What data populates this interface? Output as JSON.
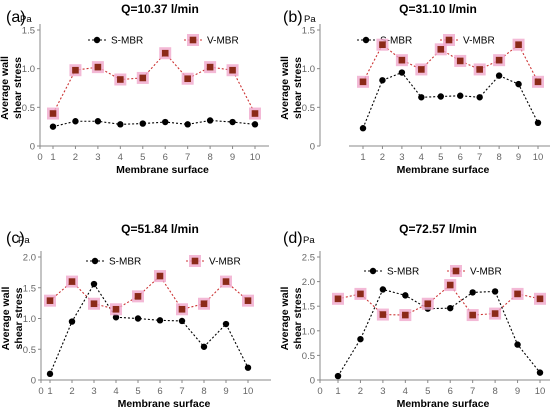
{
  "figure": {
    "colors": {
      "s_mbr": "#000000",
      "v_mbr_line": "#cc3333",
      "v_mbr_marker": "#8b2a18",
      "v_mbr_halo": "#f0a8cc",
      "axis": "#888888",
      "tick_text": "#666666"
    }
  },
  "chart_data": [
    {
      "type": "line",
      "panel_label": "(a)",
      "title": "Q=10.37 l/min",
      "unit": "Pa",
      "xlabel": "Membrane surface",
      "ylabel": [
        "Average wall",
        "shear stress"
      ],
      "x": [
        1,
        2,
        3,
        4,
        5,
        6,
        7,
        8,
        9,
        10
      ],
      "xlim": [
        0,
        10
      ],
      "xticks": [
        "0",
        "1",
        "2",
        "3",
        "4",
        "5",
        "6",
        "7",
        "8",
        "9",
        "10"
      ],
      "ylim": [
        0,
        1.5
      ],
      "yticks": [
        "0",
        "0.5",
        "1.0",
        "1.5"
      ],
      "legend_position": "top",
      "grid": false,
      "series": [
        {
          "name": "S-MBR",
          "marker": "circle",
          "values": [
            0.25,
            0.32,
            0.32,
            0.28,
            0.29,
            0.31,
            0.28,
            0.33,
            0.31,
            0.28
          ]
        },
        {
          "name": "V-MBR",
          "marker": "square",
          "values": [
            0.42,
            0.98,
            1.02,
            0.86,
            0.88,
            1.2,
            0.87,
            1.02,
            0.98,
            0.42
          ]
        }
      ]
    },
    {
      "type": "line",
      "panel_label": "(b)",
      "title": "Q=31.10 l/min",
      "unit": "Pa",
      "xlabel": "Membrane surface",
      "ylabel": [
        "Average wall",
        "shear stress"
      ],
      "x": [
        1,
        2,
        3,
        4,
        5,
        6,
        7,
        8,
        9,
        10
      ],
      "xlim": [
        0,
        10
      ],
      "xticks": [
        "1",
        "2",
        "3",
        "4",
        "5",
        "6",
        "7",
        "8",
        "9",
        "10"
      ],
      "ylim": [
        0,
        1.5
      ],
      "yticks": [
        "0",
        "0.5",
        "1.0",
        "1.5"
      ],
      "legend_position": "top",
      "grid": false,
      "series": [
        {
          "name": "S-MBR",
          "marker": "circle",
          "values": [
            0.23,
            0.85,
            0.95,
            0.63,
            0.64,
            0.65,
            0.63,
            0.91,
            0.8,
            0.3
          ]
        },
        {
          "name": "V-MBR",
          "marker": "square",
          "values": [
            0.83,
            1.31,
            1.11,
            0.99,
            1.25,
            1.1,
            0.99,
            1.11,
            1.31,
            0.83
          ]
        }
      ]
    },
    {
      "type": "line",
      "panel_label": "(c)",
      "title": "Q=51.84 l/min",
      "unit": "Pa",
      "xlabel": "Membrane surface",
      "ylabel": [
        "Average wall",
        "shear stress"
      ],
      "x": [
        1,
        2,
        3,
        4,
        5,
        6,
        7,
        8,
        9,
        10
      ],
      "xlim": [
        0,
        10
      ],
      "xticks": [
        "0",
        "1",
        "2",
        "3",
        "4",
        "5",
        "6",
        "7",
        "8",
        "9",
        "10"
      ],
      "ylim": [
        0,
        2.0
      ],
      "yticks": [
        "0",
        "0.5",
        "1.0",
        "1.5",
        "2.0"
      ],
      "legend_position": "top",
      "grid": false,
      "series": [
        {
          "name": "S-MBR",
          "marker": "circle",
          "values": [
            0.1,
            0.95,
            1.56,
            1.02,
            1.0,
            0.97,
            0.96,
            0.54,
            0.91,
            0.2
          ]
        },
        {
          "name": "V-MBR",
          "marker": "square",
          "values": [
            1.29,
            1.6,
            1.24,
            1.15,
            1.36,
            1.69,
            1.15,
            1.24,
            1.6,
            1.29
          ]
        }
      ]
    },
    {
      "type": "line",
      "panel_label": "(d)",
      "title": "Q=72.57 l/min",
      "unit": "Pa",
      "xlabel": "Membrane surface",
      "ylabel": [
        "Average wall",
        "shear stress"
      ],
      "x": [
        1,
        2,
        3,
        4,
        5,
        6,
        7,
        8,
        9,
        10
      ],
      "xlim": [
        0,
        10
      ],
      "xticks": [
        "0",
        "1",
        "2",
        "3",
        "4",
        "5",
        "6",
        "7",
        "8",
        "9",
        "10"
      ],
      "ylim": [
        0,
        2.5
      ],
      "yticks": [
        "0",
        "0.5",
        "1.0",
        "1.5",
        "2.0",
        "2.5"
      ],
      "legend_position": "top",
      "grid": false,
      "series": [
        {
          "name": "S-MBR",
          "marker": "circle",
          "values": [
            0.08,
            0.83,
            1.84,
            1.72,
            1.45,
            1.46,
            1.78,
            1.8,
            0.72,
            0.15
          ]
        },
        {
          "name": "V-MBR",
          "marker": "square",
          "values": [
            1.65,
            1.75,
            1.33,
            1.32,
            1.55,
            1.93,
            1.32,
            1.35,
            1.75,
            1.65
          ]
        }
      ]
    }
  ]
}
